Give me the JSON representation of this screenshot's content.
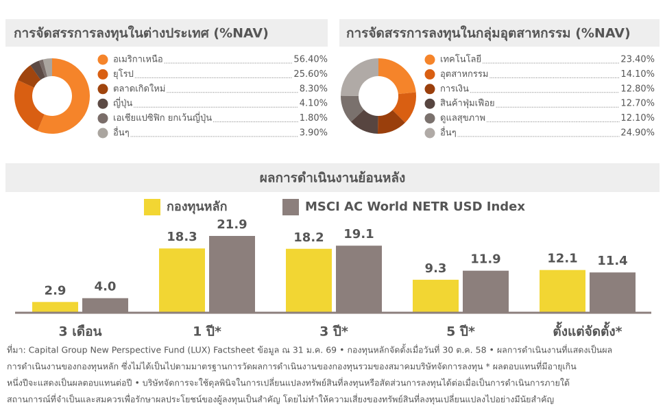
{
  "chart_data": [
    {
      "type": "donut",
      "title": "การจัดสรรการลงทุนในต่างประเทศ (%NAV)",
      "categories": [
        "อเมริกาเหนือ",
        "ยุโรป",
        "ตลาดเกิดใหม่",
        "ญี่ปุ่น",
        "เอเชียแปซิฟิก ยกเว้นญี่ปุ่น",
        "อื่นๆ"
      ],
      "values": [
        56.4,
        25.6,
        8.3,
        4.1,
        1.8,
        3.9
      ],
      "value_labels": [
        "56.40%",
        "25.60%",
        "8.30%",
        "4.10%",
        "1.80%",
        "3.90%"
      ],
      "colors": [
        "#f5842a",
        "#d95f12",
        "#a0450e",
        "#5c4a44",
        "#7a6d69",
        "#aaa59f"
      ]
    },
    {
      "type": "donut",
      "title": "การจัดสรรการลงทุนในกลุ่มอุตสาหกรรม (%NAV)",
      "categories": [
        "เทคโนโลยี",
        "อุตสาหกรรม",
        "การเงิน",
        "สินค้าฟุ่มเฟือย",
        "ดูแลสุขภาพ",
        "อื่นๆ"
      ],
      "values": [
        23.4,
        14.1,
        12.8,
        12.7,
        12.1,
        24.9
      ],
      "value_labels": [
        "23.40%",
        "14.10%",
        "12.80%",
        "12.70%",
        "12.10%",
        "24.90%"
      ],
      "colors": [
        "#f5842a",
        "#d95f12",
        "#9a3f0c",
        "#574540",
        "#7a716d",
        "#b0aaa6"
      ]
    },
    {
      "type": "bar",
      "title": "ผลการดำเนินงานย้อนหลัง",
      "categories": [
        "3 เดือน",
        "1 ปี*",
        "3 ปี*",
        "5 ปี*",
        "ตั้งแต่จัดตั้ง*"
      ],
      "series": [
        {
          "name": "กองทุนหลัก",
          "color": "#f2d633",
          "values": [
            2.9,
            18.3,
            18.2,
            9.3,
            12.1
          ]
        },
        {
          "name": "MSCI AC World NETR USD Index",
          "color": "#8c7f7c",
          "values": [
            4.0,
            21.9,
            19.1,
            11.9,
            11.4
          ],
          "value_labels": [
            "4.0",
            "21.9",
            "19.1",
            "11.9",
            "11.4"
          ]
        }
      ]
    }
  ],
  "footnote": [
    "ที่มา: Capital Group New Perspective Fund (LUX) Factsheet ข้อมูล ณ 31 ม.ค. 69 • กองทุนหลักจัดตั้งเมื่อวันที่ 30 ต.ค. 58 • ผลการดำเนินงานที่แสดงเป็นผล",
    "การดำเนินงานของกองทุนหลัก ซึ่งไม่ได้เป็นไปตามมาตรฐานการวัดผลการดำเนินงานของกองทุนรวมของสมาคมบริษัทจัดการลงทุน * ผลตอบแทนที่มีอายุเกิน",
    "หนึ่งปีจะแสดงเป็นผลตอบแทนต่อปี • บริษัทจัดการจะใช้ดุลพินิจในการเปลี่ยนแปลงทรัพย์สินที่ลงทุนหรือสัดส่วนการลงทุนได้ต่อเมื่อเป็นการดำเนินการภายใต้",
    "สถานการณ์ที่จำเป็นและสมควรเพื่อรักษาผลประโยชน์ของผู้ลงทุนเป็นสำคัญ โดยไม่ทำให้ความเสี่ยงของทรัพย์สินที่ลงทุนเปลี่ยนแปลงไปอย่างมีนัยสำคัญ"
  ]
}
